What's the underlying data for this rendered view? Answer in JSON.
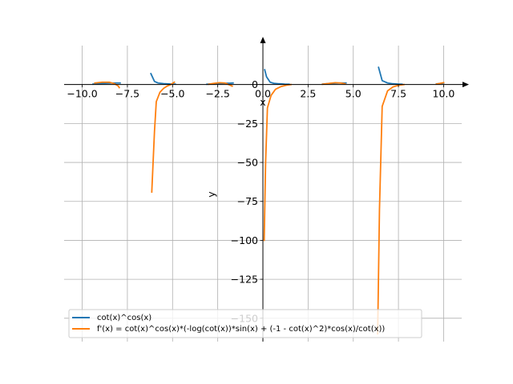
{
  "chart_data": {
    "type": "line",
    "title": "",
    "xlabel": "x",
    "ylabel": "y",
    "xlim": [
      -11.0,
      11.0
    ],
    "ylim": [
      -165,
      25
    ],
    "grid": true,
    "legend_position": "bottom-left",
    "x_ticks": [
      {
        "value": -10.0,
        "label": "−10.0"
      },
      {
        "value": -7.5,
        "label": "−7.5"
      },
      {
        "value": -5.0,
        "label": "−5.0"
      },
      {
        "value": -2.5,
        "label": "−2.5"
      },
      {
        "value": 0.0,
        "label": "0.0"
      },
      {
        "value": 2.5,
        "label": "2.5"
      },
      {
        "value": 5.0,
        "label": "5.0"
      },
      {
        "value": 7.5,
        "label": "7.5"
      },
      {
        "value": 10.0,
        "label": "10.0"
      }
    ],
    "y_ticks": [
      {
        "value": 0,
        "label": "0"
      },
      {
        "value": -25,
        "label": "−25"
      },
      {
        "value": -50,
        "label": "−50"
      },
      {
        "value": -75,
        "label": "−75"
      },
      {
        "value": -100,
        "label": "−100"
      },
      {
        "value": -125,
        "label": "−125"
      },
      {
        "value": -150,
        "label": "−150"
      }
    ],
    "series": [
      {
        "name": "cot(x)^cos(x)",
        "color": "#1f77b4",
        "segments": [
          [
            [
              -9.4,
              0.3
            ],
            [
              -9.0,
              0.7
            ],
            [
              -8.6,
              0.9
            ],
            [
              -8.2,
              1.0
            ],
            [
              -7.9,
              1.0
            ]
          ],
          [
            [
              -6.2,
              7.0
            ],
            [
              -6.0,
              2.0
            ],
            [
              -5.8,
              1.0
            ],
            [
              -5.5,
              0.6
            ],
            [
              -5.2,
              0.4
            ],
            [
              -5.0,
              0.3
            ],
            [
              -4.85,
              0.3
            ]
          ],
          [
            [
              -3.1,
              0.2
            ],
            [
              -2.8,
              0.5
            ],
            [
              -2.5,
              0.7
            ],
            [
              -2.2,
              0.8
            ],
            [
              -1.8,
              0.9
            ],
            [
              -1.65,
              1.0
            ]
          ],
          [
            [
              0.1,
              9.5
            ],
            [
              0.2,
              5.0
            ],
            [
              0.4,
              1.5
            ],
            [
              0.6,
              0.8
            ],
            [
              0.9,
              0.5
            ],
            [
              1.2,
              0.3
            ],
            [
              1.45,
              0.2
            ]
          ],
          [
            [
              3.3,
              0.3
            ],
            [
              3.7,
              0.7
            ],
            [
              4.0,
              0.9
            ],
            [
              4.3,
              1.0
            ],
            [
              4.6,
              1.0
            ]
          ],
          [
            [
              6.4,
              11.0
            ],
            [
              6.6,
              2.5
            ],
            [
              6.9,
              1.0
            ],
            [
              7.2,
              0.5
            ],
            [
              7.5,
              0.3
            ],
            [
              7.7,
              0.2
            ]
          ],
          [
            [
              9.6,
              0.4
            ],
            [
              9.9,
              0.8
            ],
            [
              10.0,
              0.9
            ]
          ]
        ]
      },
      {
        "name": "f'(x) = cot(x)^cos(x)*(-log(cot(x))*sin(x) + (-1 - cot(x)^2)*cos(x)/cot(x))",
        "color": "#ff7f0e",
        "segments": [
          [
            [
              -9.3,
              1.0
            ],
            [
              -8.9,
              1.5
            ],
            [
              -8.5,
              1.5
            ],
            [
              -8.2,
              0.5
            ],
            [
              -8.0,
              -1.0
            ],
            [
              -7.95,
              -2.0
            ]
          ],
          [
            [
              -6.15,
              -69.0
            ],
            [
              -6.0,
              -30.0
            ],
            [
              -5.9,
              -11.0
            ],
            [
              -5.7,
              -5.0
            ],
            [
              -5.5,
              -2.5
            ],
            [
              -5.3,
              -1.0
            ],
            [
              -5.1,
              0.0
            ],
            [
              -4.9,
              1.5
            ]
          ],
          [
            [
              -3.0,
              0.2
            ],
            [
              -2.7,
              0.8
            ],
            [
              -2.4,
              1.2
            ],
            [
              -2.1,
              1.0
            ],
            [
              -1.9,
              0.0
            ],
            [
              -1.7,
              -1.0
            ]
          ],
          [
            [
              0.07,
              -100.0
            ],
            [
              0.15,
              -50.0
            ],
            [
              0.25,
              -15.0
            ],
            [
              0.45,
              -7.0
            ],
            [
              0.7,
              -3.0
            ],
            [
              1.0,
              -1.3
            ],
            [
              1.3,
              -0.4
            ],
            [
              1.55,
              0.0
            ]
          ],
          [
            [
              3.3,
              0.2
            ],
            [
              3.7,
              0.8
            ],
            [
              4.0,
              1.2
            ],
            [
              4.3,
              1.0
            ],
            [
              4.55,
              0.5
            ]
          ],
          [
            [
              6.35,
              -160.0
            ],
            [
              6.45,
              -80.0
            ],
            [
              6.6,
              -14.0
            ],
            [
              6.9,
              -4.0
            ],
            [
              7.2,
              -1.5
            ],
            [
              7.5,
              -0.5
            ],
            [
              7.8,
              0.0
            ]
          ],
          [
            [
              9.6,
              0.3
            ],
            [
              9.9,
              1.0
            ],
            [
              10.0,
              1.2
            ]
          ]
        ]
      }
    ]
  }
}
